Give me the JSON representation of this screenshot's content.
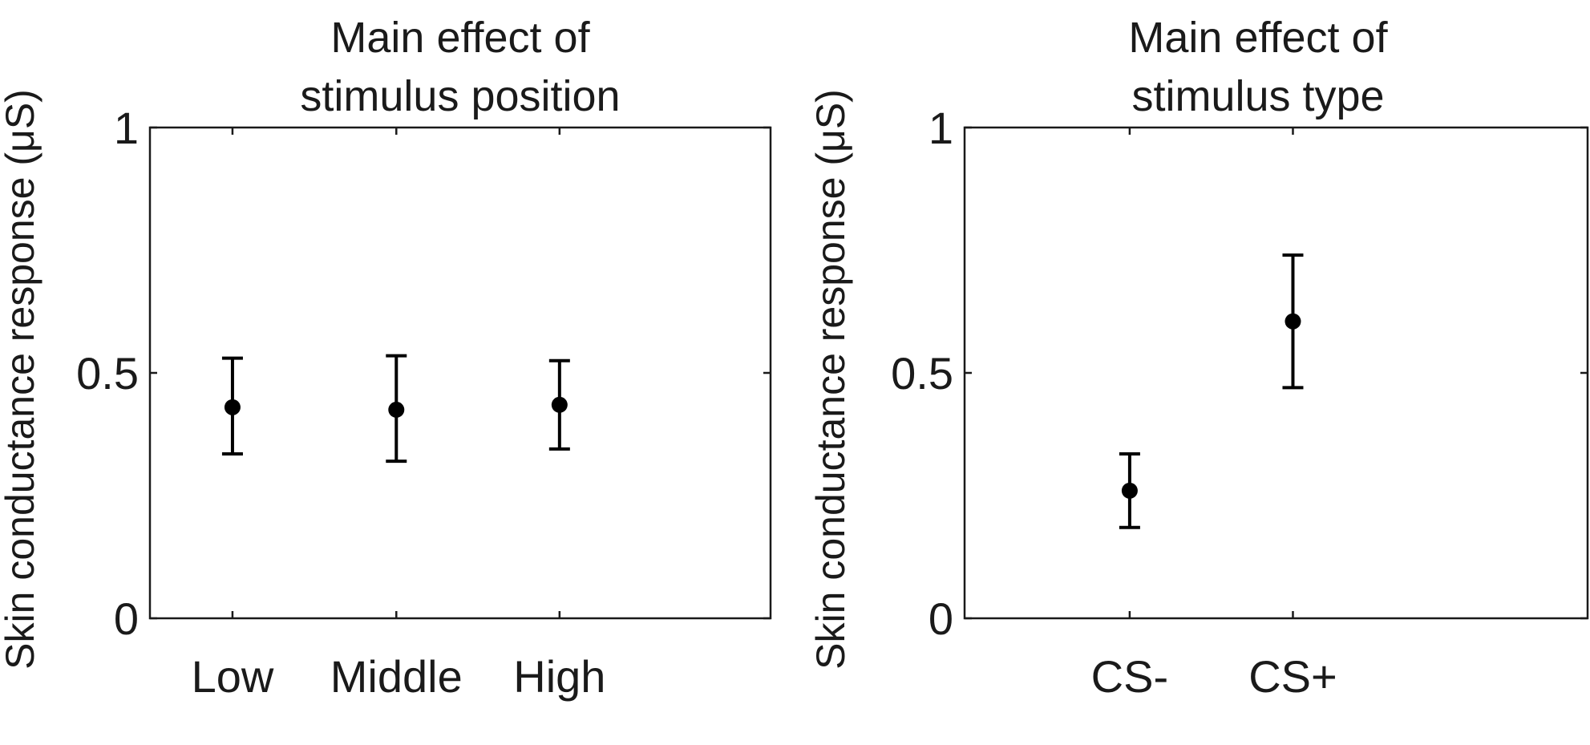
{
  "chart_data": [
    {
      "type": "scatter",
      "title": [
        "Main effect of",
        "stimulus position"
      ],
      "ylabel": "Skin conductance response (μS)",
      "xlabel": "",
      "ylim": [
        0,
        1
      ],
      "yticks": [
        "0",
        "0.5",
        "1"
      ],
      "categories": [
        "Low",
        "Middle",
        "High"
      ],
      "series": [
        {
          "values": [
            0.43,
            0.425,
            0.435
          ],
          "error_low": [
            0.335,
            0.32,
            0.345
          ],
          "error_high": [
            0.53,
            0.535,
            0.525
          ]
        }
      ],
      "grid": false,
      "colors": {
        "marker": "#000000",
        "axis": "#1a1a1a"
      }
    },
    {
      "type": "scatter",
      "title": [
        "Main effect of",
        "stimulus type"
      ],
      "ylabel": "Skin conductance response (μS)",
      "xlabel": "",
      "ylim": [
        0,
        1
      ],
      "yticks": [
        "0",
        "0.5",
        "1"
      ],
      "categories": [
        "CS-",
        "CS+"
      ],
      "series": [
        {
          "values": [
            0.26,
            0.605
          ],
          "error_low": [
            0.185,
            0.47
          ],
          "error_high": [
            0.335,
            0.74
          ]
        }
      ],
      "grid": false,
      "colors": {
        "marker": "#000000",
        "axis": "#1a1a1a"
      }
    }
  ]
}
